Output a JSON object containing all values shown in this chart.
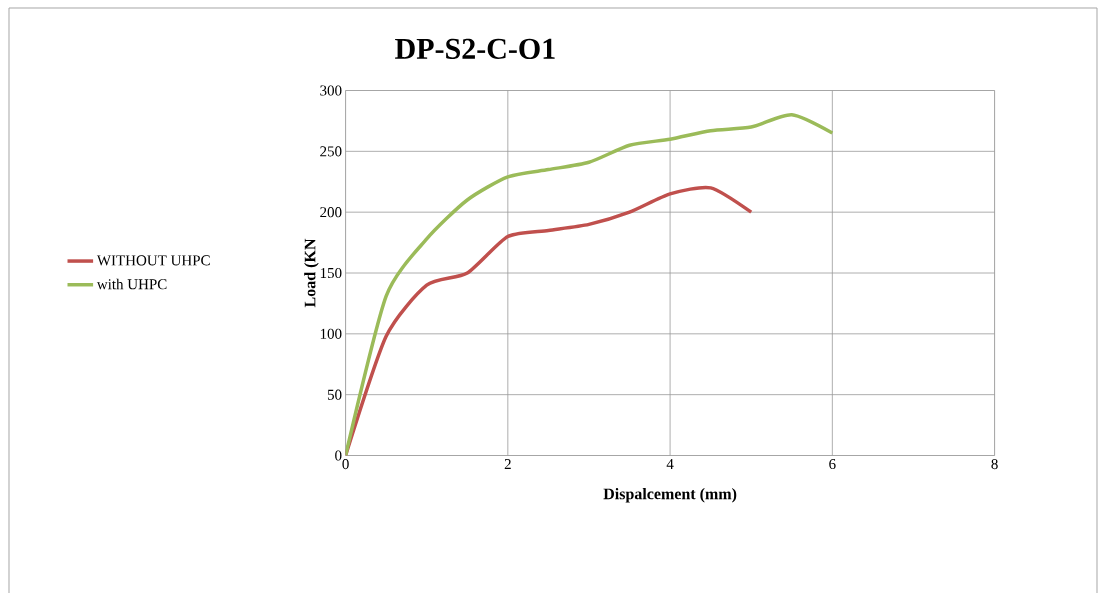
{
  "chart_data": {
    "type": "line",
    "title": "DP-S2-C-O1",
    "xlabel": "Dispalcement (mm)",
    "ylabel": "Load (KN",
    "x": [
      0,
      0.5,
      1,
      1.5,
      2,
      2.5,
      3,
      3.5,
      4,
      4.5,
      5,
      5.5,
      6
    ],
    "series": [
      {
        "name": "WITHOUT UHPC",
        "color": "#c0504d",
        "values": [
          0,
          98,
          140,
          150,
          180,
          185,
          190,
          200,
          215,
          220,
          200,
          null,
          null
        ]
      },
      {
        "name": "with UHPC",
        "color": "#9bbb59",
        "values": [
          0,
          131,
          178,
          210,
          229,
          235,
          241,
          255,
          260,
          267,
          270,
          280,
          265
        ]
      }
    ],
    "xlim": [
      0,
      8
    ],
    "ylim": [
      0,
      300
    ],
    "xticks": [
      0,
      2,
      4,
      6,
      8
    ],
    "yticks": [
      0,
      50,
      100,
      150,
      200,
      250,
      300
    ],
    "grid": true,
    "legend": "left",
    "marker": "none",
    "line_style": "solid"
  }
}
